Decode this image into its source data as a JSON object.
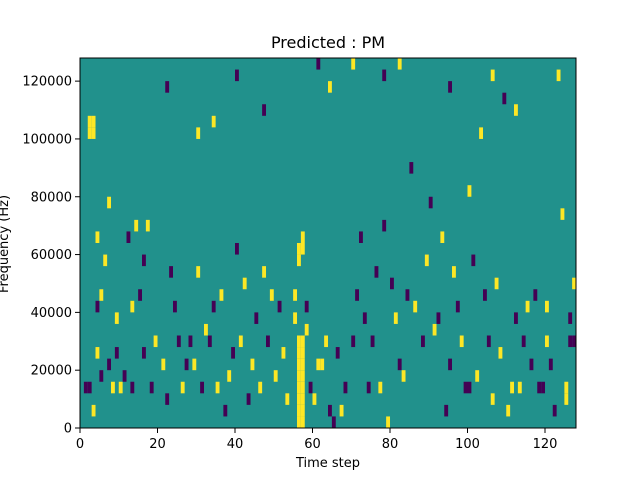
{
  "chart_data": {
    "type": "heatmap",
    "title": "Predicted : PM",
    "xlabel": "Time step",
    "ylabel": "Frequency (Hz)",
    "xlim": [
      0,
      128
    ],
    "ylim": [
      0,
      128000
    ],
    "xticks": [
      0,
      20,
      40,
      60,
      80,
      100,
      120
    ],
    "xtick_labels": [
      "0",
      "20",
      "40",
      "60",
      "80",
      "100",
      "120"
    ],
    "yticks": [
      0,
      20000,
      40000,
      60000,
      80000,
      100000,
      120000
    ],
    "ytick_labels": [
      "0",
      "20000",
      "40000",
      "60000",
      "80000",
      "100000",
      "120000"
    ],
    "cell_width_steps": 1,
    "cell_height_hz": 4000,
    "grid": false,
    "colors": {
      "background": "#21918c",
      "low": "#440154",
      "high": "#fde725"
    },
    "background_value": 0,
    "value_levels": [
      -1,
      0,
      1
    ],
    "cells": [
      {
        "x": 2,
        "y": 104000,
        "v": 1
      },
      {
        "x": 3,
        "y": 104000,
        "v": 1
      },
      {
        "x": 2,
        "y": 100000,
        "v": 1
      },
      {
        "x": 3,
        "y": 100000,
        "v": 1
      },
      {
        "x": 1,
        "y": 12000,
        "v": -1
      },
      {
        "x": 2,
        "y": 12000,
        "v": -1
      },
      {
        "x": 3,
        "y": 4000,
        "v": 1
      },
      {
        "x": 4,
        "y": 64000,
        "v": 1
      },
      {
        "x": 4,
        "y": 40000,
        "v": -1
      },
      {
        "x": 4,
        "y": 24000,
        "v": 1
      },
      {
        "x": 5,
        "y": 44000,
        "v": 1
      },
      {
        "x": 5,
        "y": 16000,
        "v": -1
      },
      {
        "x": 6,
        "y": 56000,
        "v": 1
      },
      {
        "x": 7,
        "y": 76000,
        "v": 1
      },
      {
        "x": 7,
        "y": 20000,
        "v": -1
      },
      {
        "x": 8,
        "y": 12000,
        "v": 1
      },
      {
        "x": 9,
        "y": 36000,
        "v": 1
      },
      {
        "x": 9,
        "y": 24000,
        "v": -1
      },
      {
        "x": 10,
        "y": 12000,
        "v": 1
      },
      {
        "x": 11,
        "y": 16000,
        "v": -1
      },
      {
        "x": 12,
        "y": 64000,
        "v": -1
      },
      {
        "x": 13,
        "y": 40000,
        "v": 1
      },
      {
        "x": 13,
        "y": 12000,
        "v": -1
      },
      {
        "x": 14,
        "y": 68000,
        "v": 1
      },
      {
        "x": 15,
        "y": 44000,
        "v": -1
      },
      {
        "x": 16,
        "y": 56000,
        "v": -1
      },
      {
        "x": 16,
        "y": 24000,
        "v": -1
      },
      {
        "x": 17,
        "y": 68000,
        "v": 1
      },
      {
        "x": 18,
        "y": 12000,
        "v": -1
      },
      {
        "x": 19,
        "y": 28000,
        "v": 1
      },
      {
        "x": 21,
        "y": 20000,
        "v": 1
      },
      {
        "x": 22,
        "y": 8000,
        "v": -1
      },
      {
        "x": 23,
        "y": 52000,
        "v": -1
      },
      {
        "x": 24,
        "y": 40000,
        "v": -1
      },
      {
        "x": 25,
        "y": 28000,
        "v": -1
      },
      {
        "x": 26,
        "y": 12000,
        "v": 1
      },
      {
        "x": 27,
        "y": 20000,
        "v": -1
      },
      {
        "x": 28,
        "y": 28000,
        "v": -1
      },
      {
        "x": 29,
        "y": 20000,
        "v": 1
      },
      {
        "x": 30,
        "y": 52000,
        "v": 1
      },
      {
        "x": 31,
        "y": 12000,
        "v": -1
      },
      {
        "x": 32,
        "y": 32000,
        "v": 1
      },
      {
        "x": 33,
        "y": 28000,
        "v": -1
      },
      {
        "x": 34,
        "y": 40000,
        "v": -1
      },
      {
        "x": 35,
        "y": 12000,
        "v": 1
      },
      {
        "x": 36,
        "y": 44000,
        "v": 1
      },
      {
        "x": 37,
        "y": 4000,
        "v": -1
      },
      {
        "x": 38,
        "y": 16000,
        "v": 1
      },
      {
        "x": 39,
        "y": 24000,
        "v": -1
      },
      {
        "x": 40,
        "y": 60000,
        "v": -1
      },
      {
        "x": 41,
        "y": 28000,
        "v": 1
      },
      {
        "x": 42,
        "y": 48000,
        "v": 1
      },
      {
        "x": 43,
        "y": 8000,
        "v": -1
      },
      {
        "x": 44,
        "y": 20000,
        "v": 1
      },
      {
        "x": 45,
        "y": 36000,
        "v": -1
      },
      {
        "x": 46,
        "y": 12000,
        "v": 1
      },
      {
        "x": 47,
        "y": 52000,
        "v": 1
      },
      {
        "x": 48,
        "y": 28000,
        "v": -1
      },
      {
        "x": 49,
        "y": 44000,
        "v": 1
      },
      {
        "x": 50,
        "y": 16000,
        "v": 1
      },
      {
        "x": 51,
        "y": 40000,
        "v": -1
      },
      {
        "x": 52,
        "y": 24000,
        "v": 1
      },
      {
        "x": 53,
        "y": 8000,
        "v": 1
      },
      {
        "x": 56,
        "y": 0,
        "v": 1
      },
      {
        "x": 56,
        "y": 4000,
        "v": 1
      },
      {
        "x": 56,
        "y": 8000,
        "v": 1
      },
      {
        "x": 56,
        "y": 12000,
        "v": 1
      },
      {
        "x": 56,
        "y": 16000,
        "v": 1
      },
      {
        "x": 56,
        "y": 20000,
        "v": 1
      },
      {
        "x": 56,
        "y": 24000,
        "v": 1
      },
      {
        "x": 56,
        "y": 28000,
        "v": 1
      },
      {
        "x": 57,
        "y": 0,
        "v": 1
      },
      {
        "x": 57,
        "y": 4000,
        "v": 1
      },
      {
        "x": 57,
        "y": 8000,
        "v": 1
      },
      {
        "x": 57,
        "y": 12000,
        "v": 1
      },
      {
        "x": 57,
        "y": 16000,
        "v": 1
      },
      {
        "x": 57,
        "y": 20000,
        "v": 1
      },
      {
        "x": 57,
        "y": 24000,
        "v": 1
      },
      {
        "x": 57,
        "y": 28000,
        "v": 1
      },
      {
        "x": 56,
        "y": 56000,
        "v": 1
      },
      {
        "x": 56,
        "y": 60000,
        "v": 1
      },
      {
        "x": 57,
        "y": 60000,
        "v": 1
      },
      {
        "x": 57,
        "y": 64000,
        "v": 1
      },
      {
        "x": 55,
        "y": 36000,
        "v": 1
      },
      {
        "x": 55,
        "y": 44000,
        "v": 1
      },
      {
        "x": 58,
        "y": 32000,
        "v": 1
      },
      {
        "x": 58,
        "y": 40000,
        "v": -1
      },
      {
        "x": 59,
        "y": 12000,
        "v": -1
      },
      {
        "x": 60,
        "y": 8000,
        "v": 1
      },
      {
        "x": 61,
        "y": 20000,
        "v": 1
      },
      {
        "x": 62,
        "y": 20000,
        "v": 1
      },
      {
        "x": 63,
        "y": 28000,
        "v": 1
      },
      {
        "x": 64,
        "y": 4000,
        "v": -1
      },
      {
        "x": 65,
        "y": 0,
        "v": -1
      },
      {
        "x": 66,
        "y": 24000,
        "v": -1
      },
      {
        "x": 67,
        "y": 4000,
        "v": 1
      },
      {
        "x": 68,
        "y": 12000,
        "v": -1
      },
      {
        "x": 70,
        "y": 28000,
        "v": -1
      },
      {
        "x": 71,
        "y": 44000,
        "v": -1
      },
      {
        "x": 72,
        "y": 64000,
        "v": -1
      },
      {
        "x": 73,
        "y": 36000,
        "v": -1
      },
      {
        "x": 74,
        "y": 12000,
        "v": -1
      },
      {
        "x": 75,
        "y": 28000,
        "v": -1
      },
      {
        "x": 76,
        "y": 52000,
        "v": -1
      },
      {
        "x": 77,
        "y": 12000,
        "v": 1
      },
      {
        "x": 78,
        "y": 68000,
        "v": -1
      },
      {
        "x": 79,
        "y": 0,
        "v": 1
      },
      {
        "x": 80,
        "y": 48000,
        "v": -1
      },
      {
        "x": 81,
        "y": 36000,
        "v": 1
      },
      {
        "x": 82,
        "y": 20000,
        "v": -1
      },
      {
        "x": 83,
        "y": 16000,
        "v": 1
      },
      {
        "x": 84,
        "y": 44000,
        "v": -1
      },
      {
        "x": 85,
        "y": 88000,
        "v": -1
      },
      {
        "x": 86,
        "y": 40000,
        "v": 1
      },
      {
        "x": 88,
        "y": 28000,
        "v": -1
      },
      {
        "x": 89,
        "y": 56000,
        "v": 1
      },
      {
        "x": 90,
        "y": 76000,
        "v": -1
      },
      {
        "x": 91,
        "y": 32000,
        "v": 1
      },
      {
        "x": 92,
        "y": 36000,
        "v": -1
      },
      {
        "x": 93,
        "y": 64000,
        "v": 1
      },
      {
        "x": 94,
        "y": 4000,
        "v": -1
      },
      {
        "x": 95,
        "y": 20000,
        "v": -1
      },
      {
        "x": 96,
        "y": 52000,
        "v": 1
      },
      {
        "x": 97,
        "y": 40000,
        "v": -1
      },
      {
        "x": 98,
        "y": 28000,
        "v": 1
      },
      {
        "x": 99,
        "y": 12000,
        "v": -1
      },
      {
        "x": 100,
        "y": 12000,
        "v": -1
      },
      {
        "x": 101,
        "y": 56000,
        "v": -1
      },
      {
        "x": 102,
        "y": 16000,
        "v": 1
      },
      {
        "x": 103,
        "y": 100000,
        "v": 1
      },
      {
        "x": 104,
        "y": 44000,
        "v": -1
      },
      {
        "x": 105,
        "y": 28000,
        "v": -1
      },
      {
        "x": 106,
        "y": 8000,
        "v": 1
      },
      {
        "x": 107,
        "y": 48000,
        "v": 1
      },
      {
        "x": 108,
        "y": 24000,
        "v": 1
      },
      {
        "x": 109,
        "y": 112000,
        "v": -1
      },
      {
        "x": 110,
        "y": 4000,
        "v": 1
      },
      {
        "x": 111,
        "y": 12000,
        "v": 1
      },
      {
        "x": 112,
        "y": 36000,
        "v": -1
      },
      {
        "x": 113,
        "y": 12000,
        "v": 1
      },
      {
        "x": 114,
        "y": 28000,
        "v": -1
      },
      {
        "x": 115,
        "y": 40000,
        "v": 1
      },
      {
        "x": 116,
        "y": 20000,
        "v": -1
      },
      {
        "x": 117,
        "y": 44000,
        "v": -1
      },
      {
        "x": 118,
        "y": 12000,
        "v": -1
      },
      {
        "x": 119,
        "y": 12000,
        "v": -1
      },
      {
        "x": 120,
        "y": 40000,
        "v": 1
      },
      {
        "x": 121,
        "y": 20000,
        "v": -1
      },
      {
        "x": 122,
        "y": 4000,
        "v": -1
      },
      {
        "x": 123,
        "y": 120000,
        "v": 1
      },
      {
        "x": 124,
        "y": 72000,
        "v": 1
      },
      {
        "x": 125,
        "y": 8000,
        "v": 1
      },
      {
        "x": 125,
        "y": 12000,
        "v": 1
      },
      {
        "x": 126,
        "y": 28000,
        "v": -1
      },
      {
        "x": 127,
        "y": 28000,
        "v": -1
      },
      {
        "x": 127,
        "y": 48000,
        "v": 1
      },
      {
        "x": 126,
        "y": 36000,
        "v": -1
      },
      {
        "x": 120,
        "y": 28000,
        "v": 1
      },
      {
        "x": 100,
        "y": 80000,
        "v": 1
      },
      {
        "x": 22,
        "y": 116000,
        "v": -1
      },
      {
        "x": 30,
        "y": 100000,
        "v": 1
      },
      {
        "x": 34,
        "y": 104000,
        "v": 1
      },
      {
        "x": 40,
        "y": 120000,
        "v": -1
      },
      {
        "x": 47,
        "y": 108000,
        "v": -1
      },
      {
        "x": 61,
        "y": 124000,
        "v": -1
      },
      {
        "x": 64,
        "y": 116000,
        "v": 1
      },
      {
        "x": 70,
        "y": 124000,
        "v": 1
      },
      {
        "x": 78,
        "y": 120000,
        "v": -1
      },
      {
        "x": 82,
        "y": 124000,
        "v": 1
      },
      {
        "x": 95,
        "y": 116000,
        "v": -1
      },
      {
        "x": 106,
        "y": 120000,
        "v": 1
      },
      {
        "x": 112,
        "y": 108000,
        "v": 1
      }
    ]
  }
}
